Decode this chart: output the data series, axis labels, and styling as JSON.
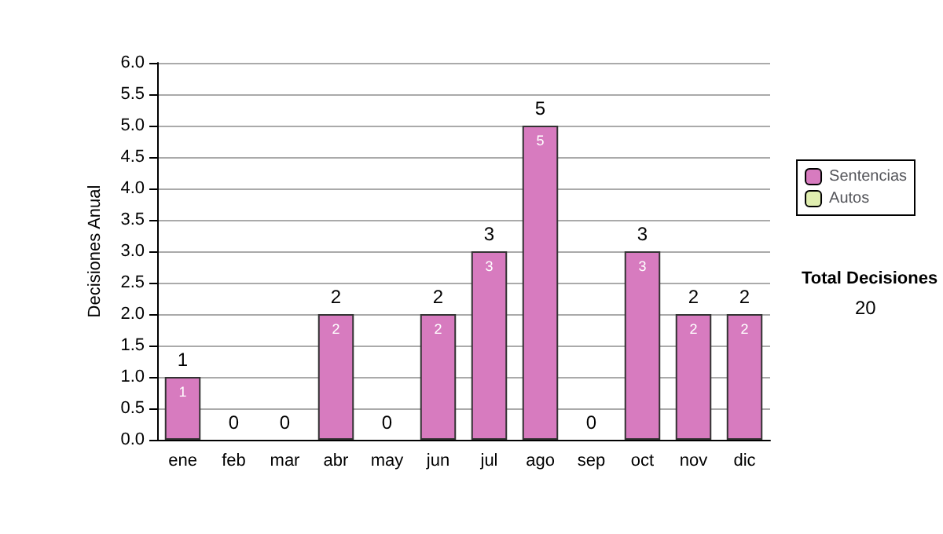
{
  "chart_data": {
    "type": "bar",
    "ylabel": "Decisiones Anual",
    "categories": [
      "ene",
      "feb",
      "mar",
      "abr",
      "may",
      "jun",
      "jul",
      "ago",
      "sep",
      "oct",
      "nov",
      "dic"
    ],
    "series": [
      {
        "name": "Sentencias",
        "color": "#d77bbf",
        "values": [
          1,
          0,
          0,
          2,
          0,
          2,
          3,
          5,
          0,
          3,
          2,
          2
        ],
        "value_labels": [
          "1",
          null,
          null,
          "2",
          null,
          "2",
          "3",
          "5",
          null,
          "3",
          "2",
          "2"
        ]
      },
      {
        "name": "Autos",
        "color": "#e0eeb0",
        "values": [
          0,
          0,
          0,
          0,
          0,
          0,
          0,
          0,
          0,
          0,
          0,
          0
        ]
      }
    ],
    "stacked": true,
    "totals": [
      "1",
      "0",
      "0",
      "2",
      "0",
      "2",
      "3",
      "5",
      "0",
      "3",
      "2",
      "2"
    ],
    "ylim": [
      0,
      6
    ],
    "yticks": [
      {
        "value": 0,
        "label": "0.0"
      },
      {
        "value": 0.5,
        "label": "0.5"
      },
      {
        "value": 1,
        "label": "1.0"
      },
      {
        "value": 1.5,
        "label": "1.5"
      },
      {
        "value": 2,
        "label": "2.0"
      },
      {
        "value": 2.5,
        "label": "2.5"
      },
      {
        "value": 3,
        "label": "3.0"
      },
      {
        "value": 3.5,
        "label": "3.5"
      },
      {
        "value": 4,
        "label": "4.0"
      },
      {
        "value": 4.5,
        "label": "4.5"
      },
      {
        "value": 5,
        "label": "5.0"
      },
      {
        "value": 5.5,
        "label": "5.5"
      },
      {
        "value": 6,
        "label": "6.0"
      }
    ],
    "grid": "y",
    "legend": "right",
    "annotations": [
      "Total Decisiones",
      "20"
    ]
  }
}
